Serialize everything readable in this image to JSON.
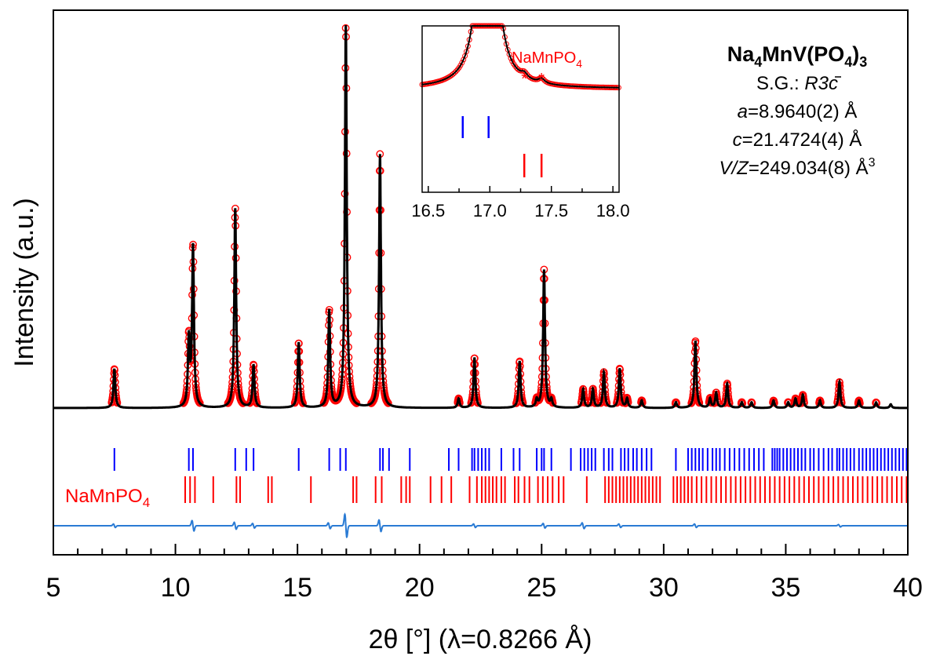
{
  "chart_data": {
    "type": "line",
    "xlabel": "2θ [°] (λ=0.8266 Å)",
    "ylabel": "Intensity (a.u.)",
    "xlim": [
      5,
      40
    ],
    "x_ticks": [
      "5",
      "10",
      "15",
      "20",
      "25",
      "30",
      "35",
      "40"
    ],
    "x_ticks_major": [
      5,
      10,
      15,
      20,
      25,
      30,
      35,
      40
    ],
    "x_minor_step": 1,
    "grid": false,
    "colors": {
      "observed": "#ff0000",
      "calculated": "#000000",
      "difference": "#2a7bd4",
      "phase_main_ticks": "#0000ff",
      "phase_impurity_ticks": "#ff0000"
    },
    "baseline": 0.0,
    "peaks": [
      {
        "x": 7.5,
        "y": 0.21
      },
      {
        "x": 10.55,
        "y": 0.36
      },
      {
        "x": 10.72,
        "y": 0.86
      },
      {
        "x": 12.45,
        "y": 1.07
      },
      {
        "x": 13.2,
        "y": 0.23
      },
      {
        "x": 15.05,
        "y": 0.35
      },
      {
        "x": 16.3,
        "y": 0.52
      },
      {
        "x": 16.98,
        "y": 2.05
      },
      {
        "x": 18.38,
        "y": 1.36
      },
      {
        "x": 21.6,
        "y": 0.05
      },
      {
        "x": 22.25,
        "y": 0.27
      },
      {
        "x": 24.1,
        "y": 0.25
      },
      {
        "x": 24.8,
        "y": 0.04
      },
      {
        "x": 25.1,
        "y": 0.74
      },
      {
        "x": 25.4,
        "y": 0.04
      },
      {
        "x": 26.7,
        "y": 0.1
      },
      {
        "x": 27.1,
        "y": 0.1
      },
      {
        "x": 27.55,
        "y": 0.19
      },
      {
        "x": 28.2,
        "y": 0.21
      },
      {
        "x": 28.5,
        "y": 0.05
      },
      {
        "x": 29.1,
        "y": 0.04
      },
      {
        "x": 30.5,
        "y": 0.03
      },
      {
        "x": 31.3,
        "y": 0.36
      },
      {
        "x": 31.9,
        "y": 0.05
      },
      {
        "x": 32.15,
        "y": 0.08
      },
      {
        "x": 32.6,
        "y": 0.13
      },
      {
        "x": 33.2,
        "y": 0.03
      },
      {
        "x": 33.6,
        "y": 0.03
      },
      {
        "x": 34.5,
        "y": 0.04
      },
      {
        "x": 35.1,
        "y": 0.03
      },
      {
        "x": 35.4,
        "y": 0.05
      },
      {
        "x": 35.7,
        "y": 0.07
      },
      {
        "x": 36.4,
        "y": 0.04
      },
      {
        "x": 37.2,
        "y": 0.14
      },
      {
        "x": 38.0,
        "y": 0.04
      },
      {
        "x": 38.7,
        "y": 0.03
      },
      {
        "x": 39.3,
        "y": 0.02
      }
    ],
    "series": [
      {
        "name": "observed",
        "style": "open circles",
        "values_from": "peaks"
      },
      {
        "name": "calculated",
        "style": "line",
        "values_from": "peaks"
      },
      {
        "name": "difference",
        "style": "line"
      }
    ],
    "difference_features": [
      {
        "x": 7.5,
        "amp": 0.03
      },
      {
        "x": 10.72,
        "amp": 0.09
      },
      {
        "x": 12.45,
        "amp": 0.06
      },
      {
        "x": 13.2,
        "amp": 0.04
      },
      {
        "x": 16.3,
        "amp": 0.05
      },
      {
        "x": 16.98,
        "amp": 0.2
      },
      {
        "x": 18.38,
        "amp": 0.1
      },
      {
        "x": 22.25,
        "amp": 0.03
      },
      {
        "x": 25.1,
        "amp": 0.04
      },
      {
        "x": 26.7,
        "amp": 0.05
      },
      {
        "x": 28.2,
        "amp": 0.03
      },
      {
        "x": 31.3,
        "amp": 0.03
      },
      {
        "x": 37.2,
        "amp": 0.02
      }
    ],
    "phase_ticks_main": [
      7.5,
      10.55,
      10.72,
      12.45,
      12.9,
      13.2,
      15.05,
      16.3,
      16.75,
      16.98,
      18.38,
      18.5,
      18.75,
      19.6,
      21.2,
      21.6,
      22.15,
      22.25,
      22.4,
      22.55,
      22.7,
      22.85,
      23.35,
      23.85,
      24.1,
      24.8,
      25.0,
      25.1,
      25.4,
      26.2,
      26.6,
      26.75,
      26.9,
      27.05,
      27.2,
      27.55,
      27.75,
      27.9,
      28.25,
      28.4,
      28.55,
      28.75,
      28.9,
      29.1,
      29.3,
      29.5,
      30.5,
      31.0,
      31.15,
      31.3,
      31.45,
      31.6,
      31.8,
      32.0,
      32.15,
      32.3,
      32.5,
      32.7,
      32.9,
      33.1,
      33.3,
      33.5,
      33.7,
      33.9,
      34.1,
      34.45,
      34.55,
      34.65,
      34.75,
      34.9,
      35.05,
      35.2,
      35.35,
      35.5,
      35.65,
      35.8,
      36.0,
      36.15,
      36.35,
      36.55,
      36.75,
      36.9,
      37.1,
      37.2,
      37.35,
      37.5,
      37.65,
      37.8,
      38.0,
      38.15,
      38.3,
      38.45,
      38.6,
      38.75,
      38.9,
      39.05,
      39.2,
      39.35,
      39.5,
      39.65,
      39.8,
      39.95
    ],
    "phase_ticks_impurity": [
      10.4,
      10.6,
      10.8,
      11.55,
      12.5,
      12.65,
      13.8,
      13.95,
      15.55,
      17.28,
      17.42,
      18.2,
      18.45,
      19.25,
      19.45,
      19.6,
      20.45,
      20.9,
      21.3,
      22.05,
      22.35,
      22.55,
      22.7,
      22.85,
      23.0,
      23.15,
      23.35,
      23.5,
      23.9,
      24.05,
      24.3,
      24.5,
      24.85,
      25.05,
      25.25,
      25.45,
      25.7,
      25.9,
      26.85,
      27.6,
      27.75,
      27.9,
      28.05,
      28.2,
      28.35,
      28.5,
      28.65,
      28.8,
      28.95,
      29.1,
      29.25,
      29.4,
      29.55,
      29.7,
      29.85,
      30.4,
      30.55,
      30.7,
      30.85,
      31.0,
      31.15,
      31.35,
      31.55,
      31.75,
      31.95,
      32.15,
      32.35,
      32.55,
      32.75,
      32.95,
      33.15,
      33.35,
      33.55,
      33.75,
      33.95,
      34.15,
      34.35,
      34.55,
      34.75,
      34.95,
      35.15,
      35.35,
      35.55,
      35.75,
      35.95,
      36.15,
      36.35,
      36.55,
      36.75,
      36.95,
      37.15,
      37.35,
      37.55,
      37.75,
      37.95,
      38.15,
      38.35,
      38.55,
      38.75,
      38.95,
      39.15,
      39.35,
      39.55,
      39.75,
      39.95
    ],
    "impurity_label": {
      "base": "NaMnPO",
      "sub": "4"
    },
    "annotation": {
      "formula": [
        {
          "t": "Na",
          "s": false
        },
        {
          "t": "4",
          "s": true
        },
        {
          "t": "MnV(PO",
          "s": false
        },
        {
          "t": "4",
          "s": true
        },
        {
          "t": ")",
          "s": false
        },
        {
          "t": "3",
          "s": true
        }
      ],
      "space_group_prefix": "S.G.: ",
      "space_group": "R3c",
      "a_label": "a",
      "a_value": "=8.9640(2) Å",
      "c_label": "c",
      "c_value": "=21.4724(4) Å",
      "v_label": "V/Z",
      "v_value": "=249.034(8) Å",
      "v_sup": "3"
    },
    "inset": {
      "xlim": [
        16.45,
        18.05
      ],
      "x_ticks": [
        "16.5",
        "17.0",
        "17.5",
        "18.0"
      ],
      "x_ticks_major": [
        16.5,
        17.0,
        17.5,
        18.0
      ],
      "label": {
        "base": "NaMnPO",
        "sub": "4"
      },
      "star_markers": [
        "*",
        "*"
      ],
      "star_positions": [
        17.28,
        17.42
      ],
      "main_ticks": [
        16.78,
        16.99
      ],
      "impurity_ticks": [
        17.28,
        17.42
      ]
    }
  }
}
